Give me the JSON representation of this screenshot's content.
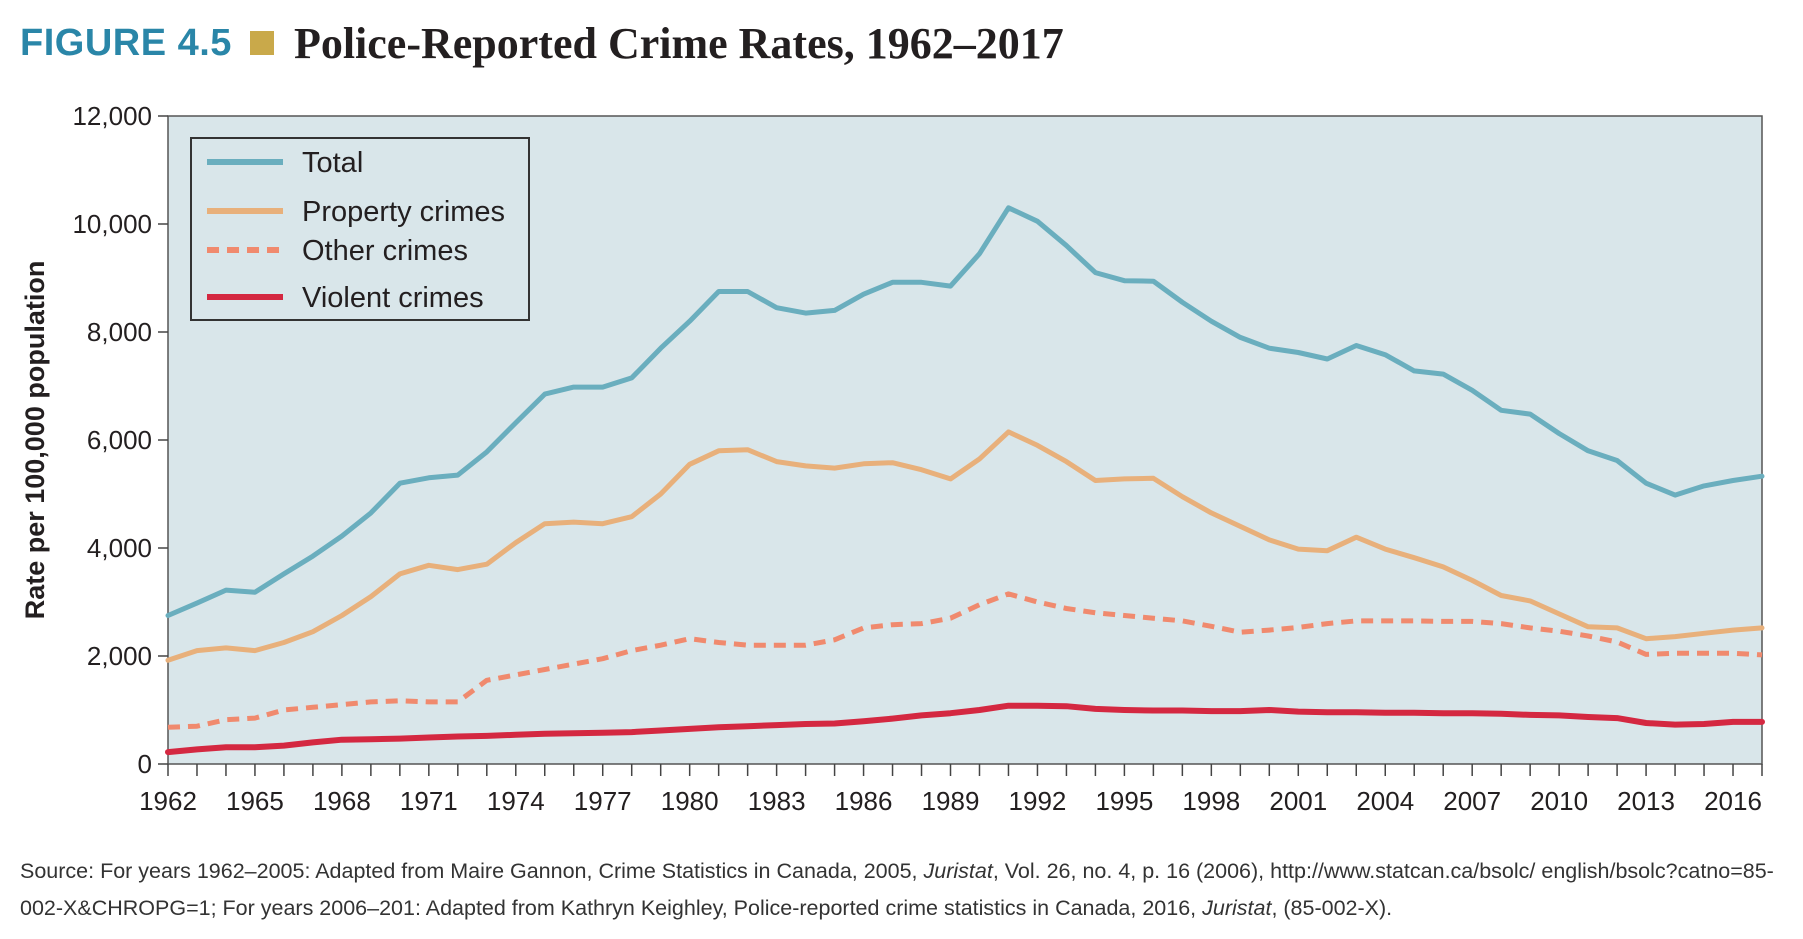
{
  "figure": {
    "label": "FIGURE 4.5",
    "title": "Police-Reported Crime Rates, 1962–2017"
  },
  "source": {
    "part1": "Source: For years 1962–2005: Adapted from Maire Gannon, Crime Statistics in Canada, 2005, ",
    "journal1": "Juristat",
    "part2": ", Vol. 26, no. 4, p. 16 (2006), http://www.statcan.ca/bsolc/ english/bsolc?catno=85-002-X&CHROPG=1; For years 2006–201: Adapted from Kathryn Keighley, Police-reported crime statistics in Canada, 2016, ",
    "journal2": "Juristat",
    "part3": ", (85-002-X)."
  },
  "colors": {
    "plot_background": "#d9e6ea",
    "total": "#6aaebe",
    "property": "#e8b07b",
    "other": "#f08a6e",
    "violent": "#d42841",
    "title_blue": "#2a86a8",
    "square": "#c9a94a"
  },
  "chart_data": {
    "type": "line",
    "title": "Police-Reported Crime Rates, 1962–2017",
    "ylabel": "Rate per 100,000 population",
    "xlabel": "",
    "xlim": [
      1962,
      2017
    ],
    "ylim": [
      0,
      12000
    ],
    "yticks": [
      0,
      2000,
      4000,
      6000,
      8000,
      10000,
      12000
    ],
    "ytick_labels": [
      "0",
      "2,000",
      "4,000",
      "6,000",
      "8,000",
      "10,000",
      "12,000"
    ],
    "xtick_labels": [
      "1962",
      "1965",
      "1968",
      "1971",
      "1974",
      "1977",
      "1980",
      "1983",
      "1986",
      "1989",
      "1992",
      "1995",
      "1998",
      "2001",
      "2004",
      "2007",
      "2010",
      "2013",
      "2016"
    ],
    "legend_position": "top-left",
    "grid": false,
    "x": [
      1962,
      1963,
      1964,
      1965,
      1966,
      1967,
      1968,
      1969,
      1970,
      1971,
      1972,
      1973,
      1974,
      1975,
      1976,
      1977,
      1978,
      1979,
      1980,
      1981,
      1982,
      1983,
      1984,
      1985,
      1986,
      1987,
      1988,
      1989,
      1990,
      1991,
      1992,
      1993,
      1994,
      1995,
      1996,
      1997,
      1998,
      1999,
      2000,
      2001,
      2002,
      2003,
      2004,
      2005,
      2006,
      2007,
      2008,
      2009,
      2010,
      2011,
      2012,
      2013,
      2014,
      2015,
      2016,
      2017
    ],
    "series": [
      {
        "name": "Total",
        "style": "solid",
        "color": "#6aaebe",
        "values": [
          2750,
          2980,
          3220,
          3180,
          3520,
          3850,
          4220,
          4650,
          5200,
          5300,
          5350,
          5780,
          6320,
          6850,
          6980,
          6980,
          7150,
          7700,
          8200,
          8750,
          8750,
          8450,
          8350,
          8400,
          8700,
          8920,
          8920,
          8850,
          9450,
          10300,
          10050,
          9600,
          9100,
          8950,
          8940,
          8550,
          8200,
          7900,
          7700,
          7620,
          7500,
          7750,
          7580,
          7280,
          7220,
          6920,
          6550,
          6480,
          6120,
          5800,
          5620,
          5200,
          4980,
          5150,
          5250,
          5330
        ]
      },
      {
        "name": "Property crimes",
        "style": "solid",
        "color": "#e8b07b",
        "values": [
          1920,
          2100,
          2150,
          2100,
          2250,
          2450,
          2750,
          3100,
          3520,
          3680,
          3600,
          3700,
          4100,
          4450,
          4480,
          4450,
          4580,
          5000,
          5550,
          5800,
          5820,
          5600,
          5520,
          5480,
          5560,
          5580,
          5450,
          5280,
          5650,
          6150,
          5900,
          5600,
          5250,
          5280,
          5290,
          4950,
          4650,
          4400,
          4150,
          3980,
          3950,
          4200,
          3980,
          3820,
          3650,
          3400,
          3120,
          3020,
          2780,
          2540,
          2520,
          2320,
          2360,
          2420,
          2480,
          2520
        ]
      },
      {
        "name": "Other crimes",
        "style": "dashed",
        "color": "#f08a6e",
        "values": [
          680,
          700,
          820,
          850,
          1000,
          1050,
          1100,
          1150,
          1170,
          1150,
          1150,
          1550,
          1650,
          1750,
          1850,
          1950,
          2100,
          2200,
          2320,
          2250,
          2200,
          2200,
          2200,
          2300,
          2520,
          2580,
          2600,
          2700,
          2950,
          3150,
          3000,
          2880,
          2800,
          2750,
          2700,
          2650,
          2550,
          2440,
          2480,
          2530,
          2600,
          2650,
          2650,
          2650,
          2640,
          2640,
          2600,
          2520,
          2460,
          2370,
          2260,
          2030,
          2050,
          2050,
          2050,
          2020
        ]
      },
      {
        "name": "Violent crimes",
        "style": "solid",
        "color": "#d42841",
        "values": [
          220,
          270,
          310,
          310,
          340,
          400,
          450,
          460,
          470,
          490,
          510,
          520,
          540,
          560,
          570,
          580,
          590,
          620,
          650,
          680,
          700,
          720,
          740,
          750,
          790,
          840,
          900,
          940,
          1000,
          1080,
          1080,
          1070,
          1020,
          1000,
          990,
          990,
          980,
          980,
          1000,
          970,
          960,
          960,
          950,
          950,
          940,
          940,
          930,
          910,
          900,
          870,
          850,
          760,
          730,
          740,
          780,
          780
        ]
      }
    ]
  }
}
